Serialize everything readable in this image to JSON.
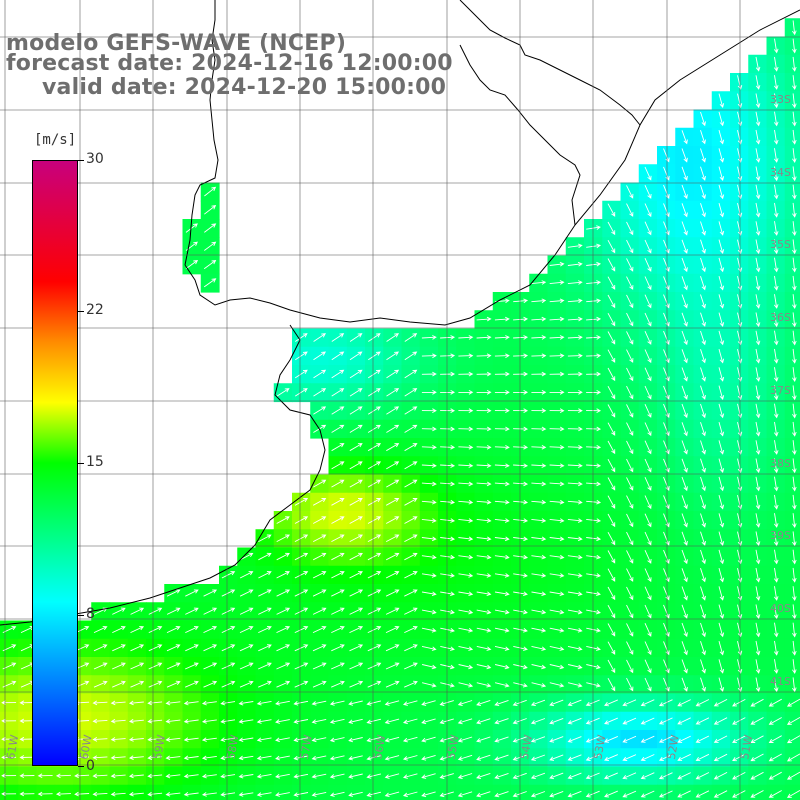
{
  "title": {
    "line1": "modelo GEFS-WAVE (NCEP)",
    "line2": "forecast date: 2024-12-16 12:00:00",
    "line3": "valid date: 2024-12-20 15:00:00"
  },
  "colorbar": {
    "unit": "[m/s]",
    "ticks": [
      "30",
      "22",
      "15",
      "8",
      "0"
    ],
    "tick_values": [
      30,
      22,
      15,
      8,
      0
    ],
    "range": [
      0,
      30
    ],
    "colors": [
      "#0000ff",
      "#00ffff",
      "#00ff00",
      "#ffff00",
      "#ff8c00",
      "#ff0000",
      "#c8007d"
    ]
  },
  "map": {
    "variable": "wind speed and direction",
    "lat_labels": [
      "33S",
      "34S",
      "35S",
      "36S",
      "37S",
      "38S",
      "39S",
      "40S",
      "41S"
    ],
    "lon_labels": [
      "61W",
      "60W",
      "59W",
      "58W",
      "57W",
      "56W",
      "55W",
      "54W",
      "53W",
      "52W",
      "51W"
    ],
    "land_color": "#ffffff",
    "grid_color": "#555555",
    "arrow_color": "#ffffff"
  }
}
